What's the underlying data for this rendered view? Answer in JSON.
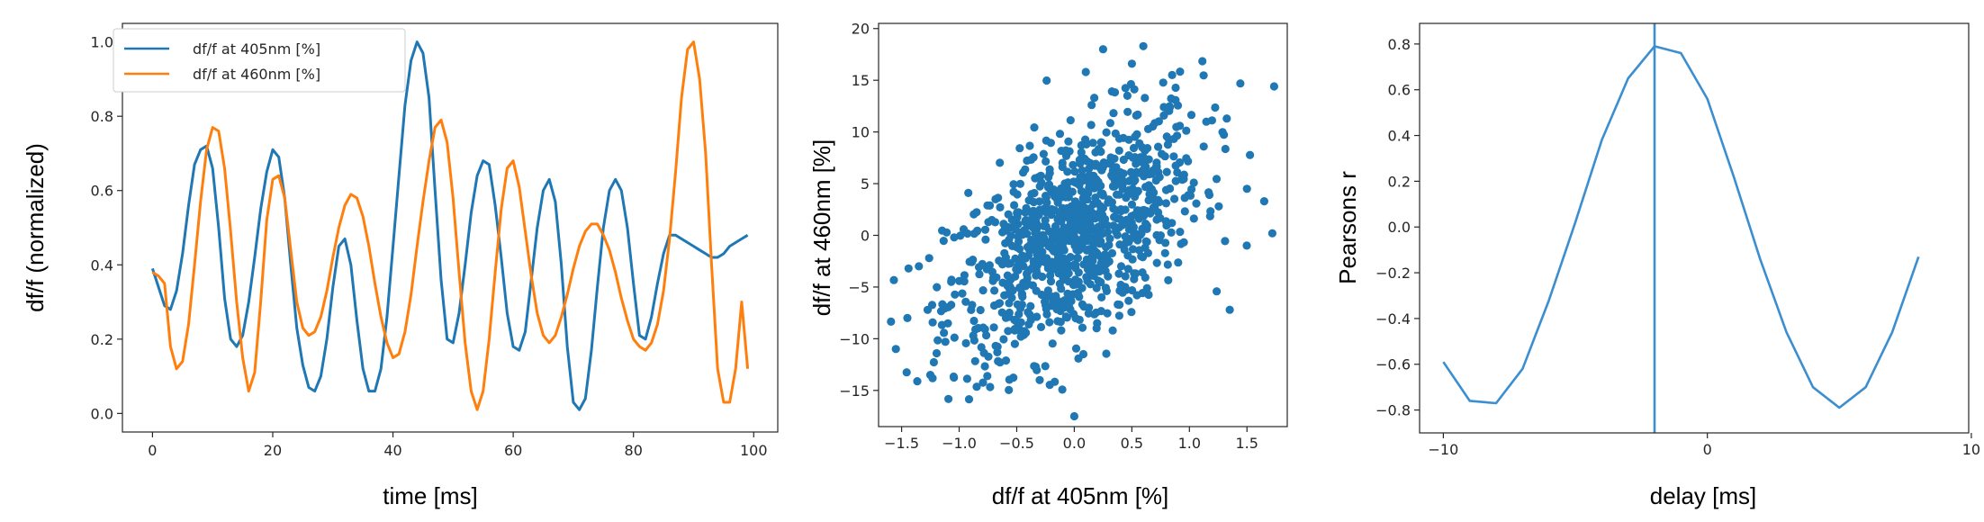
{
  "colors": {
    "blue": "#1f77b4",
    "orange": "#ff7f0e",
    "line_blue": "#3b8ed0",
    "axis": "#262626"
  },
  "chart_data": [
    {
      "type": "line",
      "xlabel": "time [ms]",
      "ylabel": "df/f (normalized)",
      "xlim": [
        -5,
        104
      ],
      "ylim": [
        -0.05,
        1.05
      ],
      "xticks": [
        0,
        20,
        40,
        60,
        80,
        100
      ],
      "yticks": [
        "0.0",
        "0.2",
        "0.4",
        "0.6",
        "0.8",
        "1.0"
      ],
      "legend_position": "top-left",
      "grid": false,
      "series": [
        {
          "name": "df/f at 405nm [%]",
          "color": "#1f77b4",
          "x": [
            0,
            1,
            2,
            3,
            4,
            5,
            6,
            7,
            8,
            9,
            10,
            11,
            12,
            13,
            14,
            15,
            16,
            17,
            18,
            19,
            20,
            21,
            22,
            23,
            24,
            25,
            26,
            27,
            28,
            29,
            30,
            31,
            32,
            33,
            34,
            35,
            36,
            37,
            38,
            39,
            40,
            41,
            42,
            43,
            44,
            45,
            46,
            47,
            48,
            49,
            50,
            51,
            52,
            53,
            54,
            55,
            56,
            57,
            58,
            59,
            60,
            61,
            62,
            63,
            64,
            65,
            66,
            67,
            68,
            69,
            70,
            71,
            72,
            73,
            74,
            75,
            76,
            77,
            78,
            79,
            80,
            81,
            82,
            83,
            84,
            85,
            86,
            87,
            88,
            89,
            90,
            91,
            92,
            93,
            94,
            95,
            96,
            97,
            98,
            99
          ],
          "y": [
            0.39,
            0.34,
            0.29,
            0.28,
            0.33,
            0.43,
            0.56,
            0.67,
            0.71,
            0.72,
            0.66,
            0.5,
            0.31,
            0.2,
            0.18,
            0.21,
            0.3,
            0.42,
            0.55,
            0.65,
            0.71,
            0.69,
            0.58,
            0.4,
            0.23,
            0.13,
            0.07,
            0.06,
            0.1,
            0.2,
            0.34,
            0.45,
            0.47,
            0.4,
            0.25,
            0.12,
            0.06,
            0.06,
            0.12,
            0.26,
            0.45,
            0.64,
            0.83,
            0.95,
            1.0,
            0.97,
            0.85,
            0.6,
            0.36,
            0.2,
            0.19,
            0.27,
            0.4,
            0.54,
            0.64,
            0.68,
            0.67,
            0.56,
            0.42,
            0.27,
            0.18,
            0.17,
            0.22,
            0.36,
            0.5,
            0.6,
            0.63,
            0.57,
            0.4,
            0.18,
            0.03,
            0.01,
            0.04,
            0.17,
            0.34,
            0.5,
            0.6,
            0.63,
            0.6,
            0.5,
            0.35,
            0.21,
            0.2,
            0.26,
            0.35,
            0.43,
            0.48,
            0.48,
            0.47,
            0.46,
            0.45,
            0.44,
            0.43,
            0.42,
            0.42,
            0.43,
            0.45,
            0.46,
            0.47,
            0.48
          ]
        },
        {
          "name": "df/f at 460nm [%]",
          "color": "#ff7f0e",
          "x": [
            0,
            1,
            2,
            3,
            4,
            5,
            6,
            7,
            8,
            9,
            10,
            11,
            12,
            13,
            14,
            15,
            16,
            17,
            18,
            19,
            20,
            21,
            22,
            23,
            24,
            25,
            26,
            27,
            28,
            29,
            30,
            31,
            32,
            33,
            34,
            35,
            36,
            37,
            38,
            39,
            40,
            41,
            42,
            43,
            44,
            45,
            46,
            47,
            48,
            49,
            50,
            51,
            52,
            53,
            54,
            55,
            56,
            57,
            58,
            59,
            60,
            61,
            62,
            63,
            64,
            65,
            66,
            67,
            68,
            69,
            70,
            71,
            72,
            73,
            74,
            75,
            76,
            77,
            78,
            79,
            80,
            81,
            82,
            83,
            84,
            85,
            86,
            87,
            88,
            89,
            90,
            91,
            92,
            93,
            94,
            95,
            96,
            97,
            98,
            99
          ],
          "y": [
            0.38,
            0.37,
            0.35,
            0.18,
            0.12,
            0.14,
            0.24,
            0.4,
            0.57,
            0.71,
            0.77,
            0.76,
            0.66,
            0.49,
            0.3,
            0.15,
            0.06,
            0.11,
            0.3,
            0.52,
            0.63,
            0.64,
            0.58,
            0.44,
            0.3,
            0.23,
            0.21,
            0.22,
            0.26,
            0.33,
            0.42,
            0.5,
            0.56,
            0.59,
            0.58,
            0.53,
            0.45,
            0.35,
            0.26,
            0.19,
            0.15,
            0.16,
            0.22,
            0.32,
            0.45,
            0.57,
            0.68,
            0.77,
            0.79,
            0.73,
            0.58,
            0.38,
            0.19,
            0.06,
            0.01,
            0.06,
            0.2,
            0.38,
            0.55,
            0.66,
            0.68,
            0.61,
            0.49,
            0.37,
            0.27,
            0.21,
            0.19,
            0.21,
            0.26,
            0.32,
            0.39,
            0.45,
            0.49,
            0.51,
            0.51,
            0.48,
            0.44,
            0.38,
            0.31,
            0.25,
            0.2,
            0.18,
            0.17,
            0.19,
            0.24,
            0.33,
            0.47,
            0.65,
            0.85,
            0.98,
            1.0,
            0.9,
            0.7,
            0.4,
            0.12,
            0.03,
            0.03,
            0.12,
            0.3,
            0.12
          ]
        }
      ]
    },
    {
      "type": "scatter",
      "xlabel": "df/f at 405nm [%]",
      "ylabel": "df/f at 460nm [%]",
      "xlim": [
        -1.7,
        1.85
      ],
      "ylim": [
        -18.5,
        20.5
      ],
      "xticks": [
        "−1.5",
        "−1.0",
        "−0.5",
        "0.0",
        "0.5",
        "1.0",
        "1.5"
      ],
      "yticks": [
        "−15",
        "−10",
        "−5",
        "0",
        "5",
        "10",
        "15",
        "20"
      ],
      "color": "#1f77b4",
      "approx_point_count": 1000,
      "correlation": 0.55,
      "x_mean": 0.0,
      "x_sd": 0.55,
      "y_mean": 0.0,
      "y_sd": 6.0,
      "points": [
        {
          "x": -1.55,
          "y": -11.0
        },
        {
          "x": -1.45,
          "y": -8.0
        },
        {
          "x": -1.35,
          "y": -3.0
        },
        {
          "x": -1.25,
          "y": -13.5
        },
        {
          "x": -0.3,
          "y": -14.0
        },
        {
          "x": 0.0,
          "y": -17.5
        },
        {
          "x": 0.25,
          "y": 18.0
        },
        {
          "x": 0.6,
          "y": 18.3
        },
        {
          "x": 1.5,
          "y": 4.5
        },
        {
          "x": 1.72,
          "y": 0.2
        },
        {
          "x": 1.65,
          "y": 3.3
        },
        {
          "x": 1.35,
          "y": -7.2
        },
        {
          "x": 0.1,
          "y": 15.8
        },
        {
          "x": 0.5,
          "y": 16.6
        },
        {
          "x": 0.85,
          "y": 15.5
        }
      ]
    },
    {
      "type": "line",
      "xlabel": "delay [ms]",
      "ylabel": "Pearsons r",
      "xlim": [
        -10.9,
        9.9
      ],
      "ylim": [
        -0.9,
        0.89
      ],
      "xticks": [
        "−10",
        "0",
        "10"
      ],
      "yticks": [
        "−0.8",
        "−0.6",
        "−0.4",
        "−0.2",
        "0.0",
        "0.2",
        "0.4",
        "0.6",
        "0.8"
      ],
      "vline_x": -2,
      "series": [
        {
          "color": "#3b8ed0",
          "x": [
            -10,
            -9,
            -8,
            -7,
            -6,
            -5,
            -4,
            -3,
            -2,
            -1,
            0,
            1,
            2,
            3,
            4,
            5,
            6,
            7,
            8
          ],
          "y": [
            -0.59,
            -0.76,
            -0.77,
            -0.62,
            -0.32,
            0.02,
            0.38,
            0.65,
            0.79,
            0.76,
            0.56,
            0.22,
            -0.14,
            -0.46,
            -0.7,
            -0.79,
            -0.7,
            -0.46,
            -0.13
          ]
        }
      ]
    }
  ]
}
